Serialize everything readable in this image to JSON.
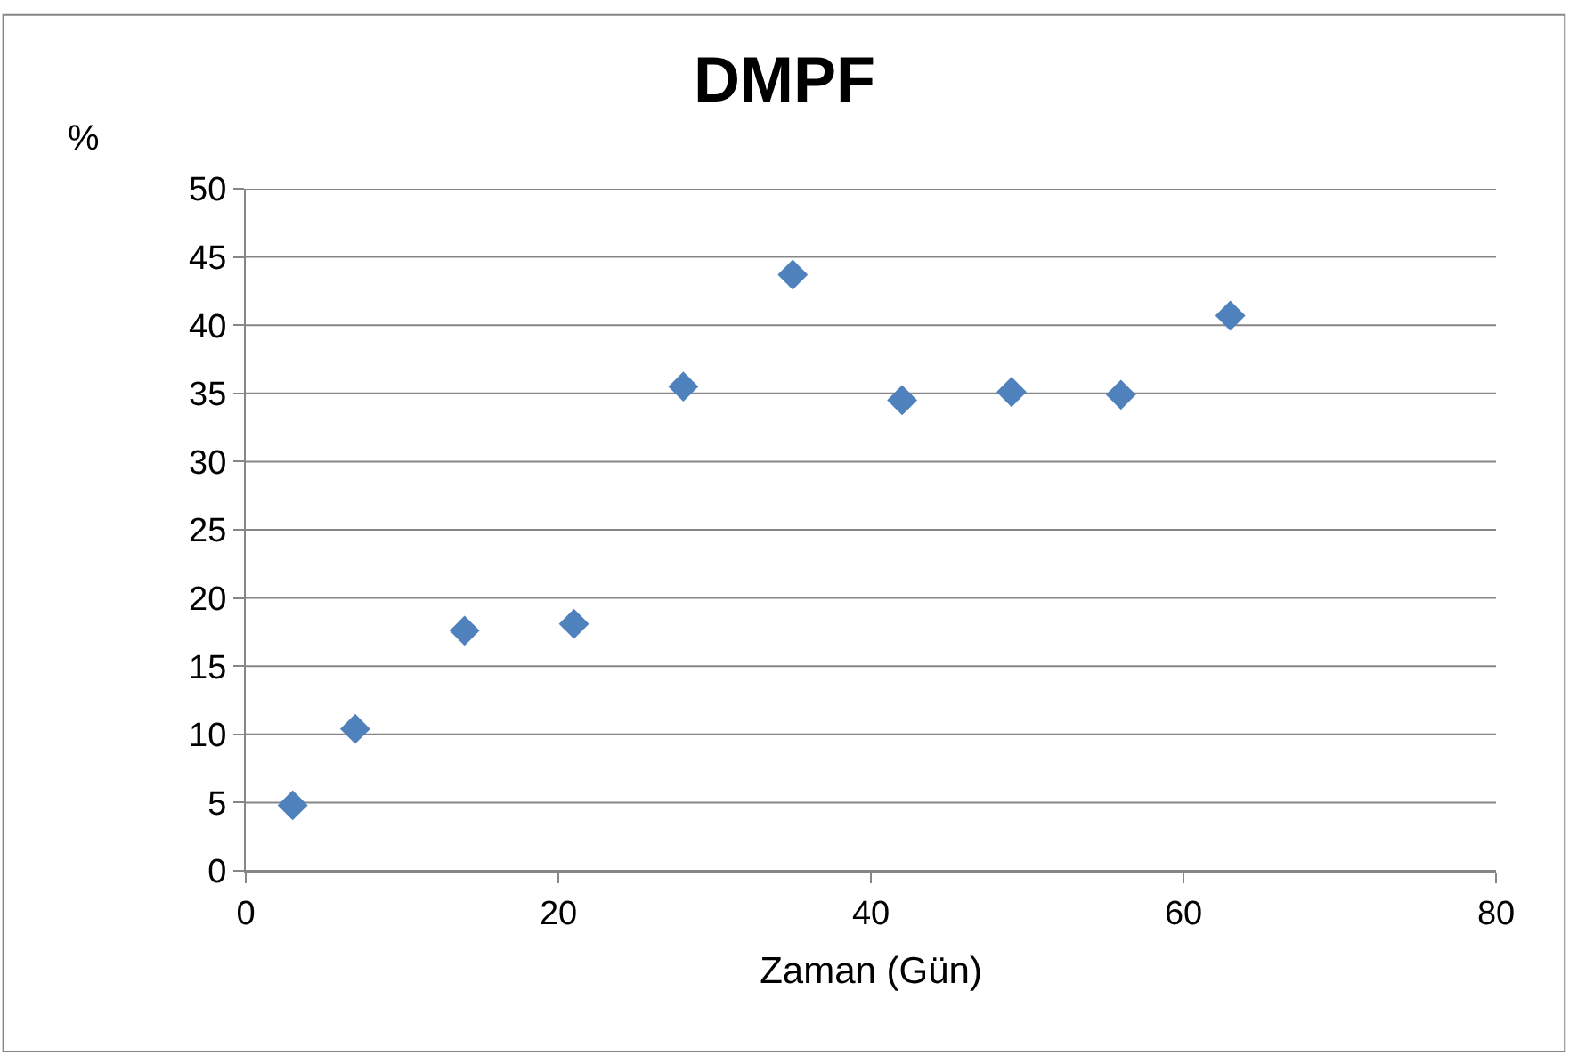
{
  "chart_data": {
    "type": "scatter",
    "title": "DMPF",
    "xlabel": "Zaman (Gün)",
    "ylabel": "%",
    "x": [
      3,
      7,
      14,
      21,
      28,
      35,
      42,
      49,
      56,
      63
    ],
    "series": [
      {
        "color": "#4f81bd",
        "values": [
          4.8,
          10.4,
          17.6,
          18.1,
          35.5,
          43.7,
          34.5,
          35.1,
          34.9,
          40.7
        ]
      }
    ],
    "xlim": [
      0,
      80
    ],
    "xticks": [
      0,
      20,
      40,
      60,
      80
    ],
    "ylim": [
      0,
      50
    ],
    "yticks": [
      0,
      5,
      10,
      15,
      20,
      25,
      30,
      35,
      40,
      45,
      50
    ],
    "grid": "y",
    "marker": "diamond"
  }
}
